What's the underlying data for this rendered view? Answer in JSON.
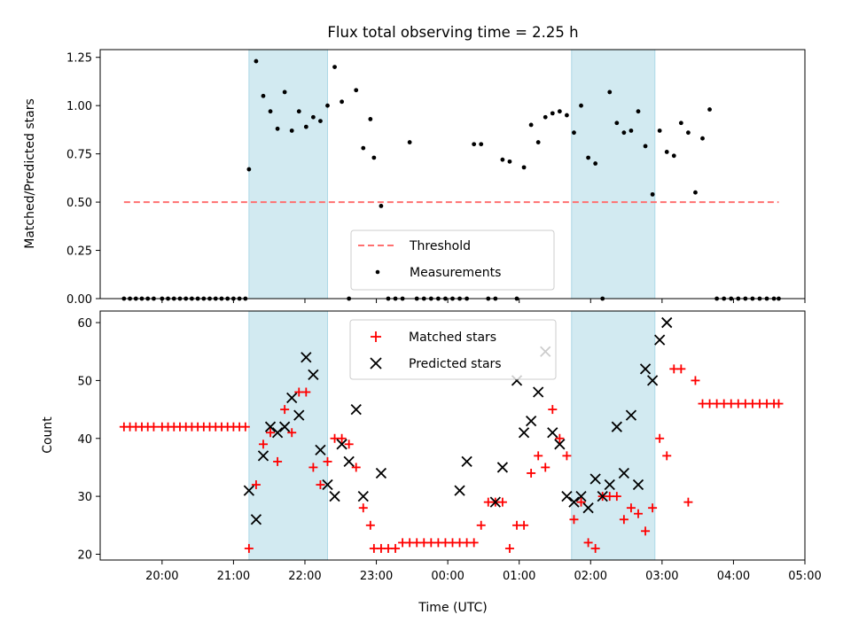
{
  "chart_data": [
    {
      "type": "scatter",
      "title": "Flux total observing time = 2.25 h",
      "xlabel": "",
      "ylabel": "Matched/Predicted stars",
      "xlim": [
        "19:08",
        "05:00"
      ],
      "ylim": [
        0,
        1.29
      ],
      "yticks": [
        "0.00",
        "0.25",
        "0.50",
        "0.75",
        "1.00",
        "1.25"
      ],
      "ytick_values": [
        0,
        0.25,
        0.5,
        0.75,
        1.0,
        1.25
      ],
      "grid": false,
      "legend_position": "lower center",
      "shaded_spans": [
        [
          "21:13",
          "22:19"
        ],
        [
          "01:44",
          "02:54"
        ]
      ],
      "span_color": "#add8e6",
      "threshold": {
        "name": "Threshold",
        "y": 0.5,
        "x_range": [
          "19:28",
          "04:38"
        ],
        "color": "#ff7070"
      },
      "series": [
        {
          "name": "Measurements",
          "color": "#000000",
          "x": [
            "19:28",
            "19:33",
            "19:38",
            "19:43",
            "19:48",
            "19:53",
            "20:00",
            "20:05",
            "20:10",
            "20:15",
            "20:20",
            "20:25",
            "20:30",
            "20:35",
            "20:40",
            "20:45",
            "20:50",
            "20:55",
            "21:00",
            "21:05",
            "21:10",
            "21:13",
            "21:19",
            "21:25",
            "21:31",
            "21:37",
            "21:43",
            "21:49",
            "21:55",
            "22:01",
            "22:07",
            "22:13",
            "22:19",
            "22:25",
            "22:31",
            "22:37",
            "22:43",
            "22:49",
            "22:55",
            "22:58",
            "23:04",
            "23:10",
            "23:16",
            "23:22",
            "23:28",
            "23:34",
            "23:40",
            "23:46",
            "23:52",
            "23:58",
            "00:04",
            "00:10",
            "00:16",
            "00:22",
            "00:28",
            "00:34",
            "00:40",
            "00:46",
            "00:52",
            "00:58",
            "01:04",
            "01:10",
            "01:16",
            "01:22",
            "01:28",
            "01:34",
            "01:40",
            "01:46",
            "01:52",
            "01:58",
            "02:04",
            "02:10",
            "02:16",
            "02:22",
            "02:28",
            "02:34",
            "02:40",
            "02:46",
            "02:52",
            "02:58",
            "03:04",
            "03:10",
            "03:16",
            "03:22",
            "03:28",
            "03:34",
            "03:40",
            "03:46",
            "03:52",
            "03:58",
            "04:04",
            "04:10",
            "04:16",
            "04:22",
            "04:28",
            "04:34",
            "04:38"
          ],
          "y": [
            0,
            0,
            0,
            0,
            0,
            0,
            0,
            0,
            0,
            0,
            0,
            0,
            0,
            0,
            0,
            0,
            0,
            0,
            0,
            0,
            0,
            0.67,
            1.23,
            1.05,
            0.97,
            0.88,
            1.07,
            0.87,
            0.97,
            0.89,
            0.94,
            0.92,
            1.0,
            1.2,
            1.02,
            0,
            1.08,
            0.78,
            0.93,
            0.73,
            0.48,
            0,
            0,
            0,
            0.81,
            0,
            0,
            0,
            0,
            0,
            0,
            0,
            0,
            0.8,
            0.8,
            0,
            0,
            0.72,
            0.71,
            0,
            0.68,
            0.9,
            0.81,
            0.94,
            0.96,
            0.97,
            0.95,
            0.86,
            1.0,
            0.73,
            0.7,
            0,
            1.07,
            0.91,
            0.86,
            0.87,
            0.97,
            0.79,
            0.54,
            0.87,
            0.76,
            0.74,
            0.91,
            0.86,
            0.55,
            0.83,
            0.98,
            0,
            0,
            0,
            0,
            0,
            0,
            0,
            0,
            0,
            0
          ]
        }
      ]
    },
    {
      "type": "scatter",
      "title": "",
      "xlabel": "Time (UTC)",
      "ylabel": "Count",
      "xlim": [
        "19:08",
        "05:00"
      ],
      "ylim": [
        19,
        62
      ],
      "yticks": [
        "20",
        "30",
        "40",
        "50",
        "60"
      ],
      "ytick_values": [
        20,
        30,
        40,
        50,
        60
      ],
      "xticks": [
        "20:00",
        "21:00",
        "22:00",
        "23:00",
        "00:00",
        "01:00",
        "02:00",
        "03:00",
        "04:00",
        "05:00"
      ],
      "grid": false,
      "legend_position": "upper center",
      "shaded_spans": [
        [
          "21:13",
          "22:19"
        ],
        [
          "01:44",
          "02:54"
        ]
      ],
      "span_color": "#add8e6",
      "series": [
        {
          "name": "Matched stars",
          "marker": "+",
          "color": "#ff0000",
          "x": [
            "19:28",
            "19:33",
            "19:38",
            "19:43",
            "19:48",
            "19:53",
            "20:00",
            "20:05",
            "20:10",
            "20:15",
            "20:20",
            "20:25",
            "20:30",
            "20:35",
            "20:40",
            "20:45",
            "20:50",
            "20:55",
            "21:00",
            "21:05",
            "21:10",
            "21:13",
            "21:19",
            "21:25",
            "21:31",
            "21:37",
            "21:43",
            "21:49",
            "21:55",
            "22:01",
            "22:07",
            "22:13",
            "22:19",
            "22:25",
            "22:31",
            "22:37",
            "22:43",
            "22:49",
            "22:55",
            "22:58",
            "23:04",
            "23:10",
            "23:16",
            "23:22",
            "23:28",
            "23:34",
            "23:40",
            "23:46",
            "23:52",
            "23:58",
            "00:04",
            "00:10",
            "00:16",
            "00:22",
            "00:28",
            "00:34",
            "00:40",
            "00:46",
            "00:52",
            "00:58",
            "01:04",
            "01:10",
            "01:16",
            "01:22",
            "01:28",
            "01:34",
            "01:40",
            "01:46",
            "01:52",
            "01:58",
            "02:04",
            "02:10",
            "02:16",
            "02:22",
            "02:28",
            "02:34",
            "02:40",
            "02:46",
            "02:52",
            "02:58",
            "03:04",
            "03:10",
            "03:16",
            "03:22",
            "03:28",
            "03:34",
            "03:40",
            "03:46",
            "03:52",
            "03:58",
            "04:04",
            "04:10",
            "04:16",
            "04:22",
            "04:28",
            "04:34",
            "04:38"
          ],
          "y": [
            42,
            42,
            42,
            42,
            42,
            42,
            42,
            42,
            42,
            42,
            42,
            42,
            42,
            42,
            42,
            42,
            42,
            42,
            42,
            42,
            42,
            21,
            32,
            39,
            41,
            36,
            45,
            41,
            48,
            48,
            35,
            32,
            36,
            40,
            40,
            39,
            35,
            28,
            25,
            21,
            21,
            21,
            21,
            22,
            22,
            22,
            22,
            22,
            22,
            22,
            22,
            22,
            22,
            22,
            25,
            29,
            29,
            29,
            21,
            25,
            25,
            34,
            37,
            35,
            45,
            40,
            37,
            26,
            29,
            22,
            21,
            30,
            30,
            30,
            26,
            28,
            27,
            24,
            28,
            40,
            37,
            52,
            52,
            29,
            50,
            46,
            46,
            46,
            46,
            46,
            46,
            46,
            46,
            46,
            46,
            46,
            46
          ]
        },
        {
          "name": "Predicted stars",
          "marker": "x",
          "color": "#000000",
          "x": [
            "21:13",
            "21:19",
            "21:25",
            "21:31",
            "21:37",
            "21:43",
            "21:49",
            "21:55",
            "22:01",
            "22:07",
            "22:13",
            "22:19",
            "22:25",
            "22:31",
            "22:37",
            "22:43",
            "22:49",
            "23:04",
            "00:10",
            "00:16",
            "00:40",
            "00:46",
            "00:58",
            "01:04",
            "01:10",
            "01:16",
            "01:22",
            "01:28",
            "01:34",
            "01:40",
            "01:46",
            "01:52",
            "01:58",
            "02:04",
            "02:10",
            "02:16",
            "02:22",
            "02:28",
            "02:34",
            "02:40",
            "02:46",
            "02:52",
            "02:58",
            "03:04"
          ],
          "y": [
            31,
            26,
            37,
            42,
            41,
            42,
            47,
            44,
            54,
            51,
            38,
            32,
            30,
            39,
            36,
            45,
            30,
            34,
            31,
            36,
            29,
            35,
            50,
            41,
            43,
            48,
            55,
            41,
            39,
            30,
            29,
            30,
            28,
            33,
            30,
            32,
            42,
            34,
            44,
            32,
            52,
            50,
            57,
            60
          ]
        }
      ]
    }
  ]
}
